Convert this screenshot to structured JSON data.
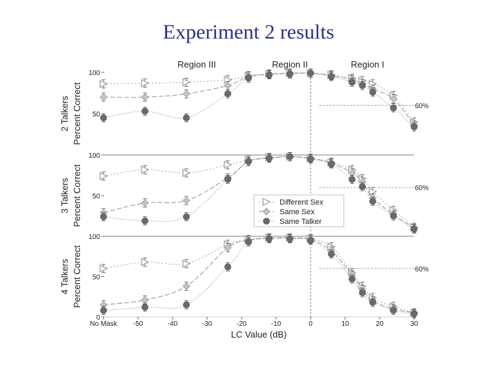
{
  "slide": {
    "title": "Experiment 2 results"
  },
  "chart_data": {
    "type": "scatter",
    "xlabel": "LC Value (dB)",
    "xlim": [
      -60,
      30
    ],
    "x_tick_labels": [
      "No Mask",
      "-50",
      "-40",
      "-30",
      "-20",
      "-10",
      "0",
      "10",
      "20",
      "30"
    ],
    "x_tick_values": [
      -60,
      -50,
      -40,
      -30,
      -20,
      -10,
      0,
      10,
      20,
      30
    ],
    "ylim": [
      0,
      100
    ],
    "y_ticks": [
      "0",
      "50",
      "100"
    ],
    "regions": [
      "Region III",
      "Region II",
      "Region I"
    ],
    "threshold_label": "60%",
    "legend": [
      "Different Sex",
      "Same Sex",
      "Same Talker"
    ],
    "panels": [
      {
        "ylabel": [
          "2 Talkers",
          "Percent Correct"
        ],
        "series": [
          {
            "name": "Different Sex",
            "x": [
              -60,
              -48,
              -36,
              -24,
              -18,
              -12,
              -6,
              0,
              6,
              12,
              15,
              18,
              24,
              30
            ],
            "y": [
              86,
              87,
              88,
              91,
              96,
              98,
              99,
              99,
              97,
              93,
              90,
              86,
              72,
              40
            ]
          },
          {
            "name": "Same Sex",
            "x": [
              -60,
              -48,
              -36,
              -24,
              -18,
              -12,
              -6,
              0,
              6,
              12,
              15,
              18,
              24,
              30
            ],
            "y": [
              70,
              70,
              74,
              84,
              95,
              98,
              99,
              99,
              96,
              91,
              86,
              80,
              68,
              36
            ]
          },
          {
            "name": "Same Talker",
            "x": [
              -60,
              -48,
              -36,
              -24,
              -18,
              -12,
              -6,
              0,
              6,
              12,
              15,
              18,
              24,
              30
            ],
            "y": [
              45,
              53,
              45,
              74,
              93,
              97,
              98,
              99,
              95,
              88,
              84,
              76,
              57,
              34
            ]
          }
        ]
      },
      {
        "ylabel": [
          "3 Talkers",
          "Percent Correct"
        ],
        "series": [
          {
            "name": "Different Sex",
            "x": [
              -60,
              -48,
              -36,
              -24,
              -18,
              -12,
              -6,
              0,
              6,
              12,
              15,
              18,
              24,
              30
            ],
            "y": [
              74,
              82,
              78,
              88,
              94,
              97,
              98,
              96,
              91,
              82,
              71,
              55,
              32,
              11
            ]
          },
          {
            "name": "Same Sex",
            "x": [
              -60,
              -48,
              -36,
              -24,
              -18,
              -12,
              -6,
              0,
              6,
              12,
              15,
              18,
              24,
              30
            ],
            "y": [
              29,
              41,
              44,
              72,
              92,
              96,
              98,
              96,
              90,
              78,
              67,
              47,
              27,
              10
            ]
          },
          {
            "name": "Same Talker",
            "x": [
              -60,
              -48,
              -36,
              -24,
              -18,
              -12,
              -6,
              0,
              6,
              12,
              15,
              18,
              24,
              30
            ],
            "y": [
              24,
              19,
              24,
              70,
              92,
              96,
              98,
              95,
              89,
              70,
              61,
              43,
              25,
              9
            ]
          }
        ]
      },
      {
        "ylabel": [
          "4 Talkers",
          "Percent Correct"
        ],
        "series": [
          {
            "name": "Different Sex",
            "x": [
              -60,
              -48,
              -36,
              -24,
              -18,
              -12,
              -6,
              0,
              6,
              12,
              15,
              18,
              24,
              30
            ],
            "y": [
              60,
              68,
              66,
              90,
              96,
              98,
              98,
              97,
              87,
              55,
              38,
              24,
              13,
              5
            ]
          },
          {
            "name": "Same Sex",
            "x": [
              -60,
              -48,
              -36,
              -24,
              -18,
              -12,
              -6,
              0,
              6,
              12,
              15,
              18,
              24,
              30
            ],
            "y": [
              15,
              21,
              38,
              86,
              95,
              98,
              98,
              96,
              82,
              52,
              34,
              20,
              10,
              5
            ]
          },
          {
            "name": "Same Talker",
            "x": [
              -60,
              -48,
              -36,
              -24,
              -18,
              -12,
              -6,
              0,
              6,
              12,
              15,
              18,
              24,
              30
            ],
            "y": [
              8,
              12,
              15,
              62,
              93,
              97,
              97,
              95,
              78,
              47,
              30,
              18,
              8,
              4
            ]
          }
        ]
      }
    ],
    "colors": {
      "different_sex": "#9a9a9a",
      "same_sex": "#a8a8a8",
      "same_talker": "#6a6a6a"
    }
  }
}
